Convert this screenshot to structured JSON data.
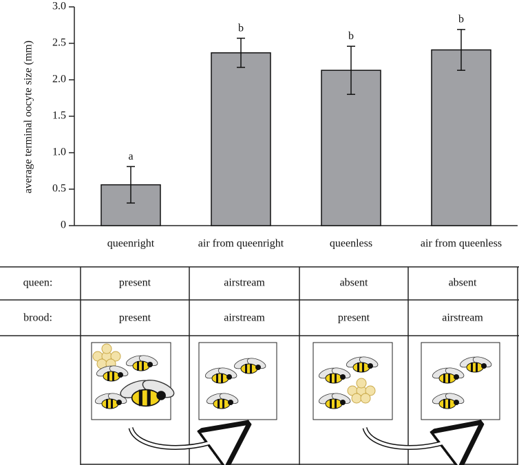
{
  "chart_data": {
    "type": "bar",
    "y_label": "average terminal oocyte size (mm)",
    "categories": [
      "queenright",
      "air from queenright",
      "queenless",
      "air from queenless"
    ],
    "values": [
      0.56,
      2.37,
      2.13,
      2.41
    ],
    "errors": [
      0.25,
      0.2,
      0.33,
      0.28
    ],
    "letters": [
      "a",
      "b",
      "b",
      "b"
    ],
    "color": "#a0a1a5",
    "ylim": [
      0,
      3
    ],
    "yticks": [
      0,
      0.5,
      {
        "value": 1,
        "label": "1.0"
      },
      1.5,
      {
        "value": 2,
        "label": "2.0"
      },
      2.5,
      {
        "value": 3,
        "label": "3.0"
      }
    ]
  },
  "table": {
    "rows": [
      [
        "queen:",
        "present",
        "airstream",
        "absent",
        "absent"
      ],
      [
        "brood:",
        "present",
        "airstream",
        "present",
        "airstream"
      ]
    ]
  }
}
